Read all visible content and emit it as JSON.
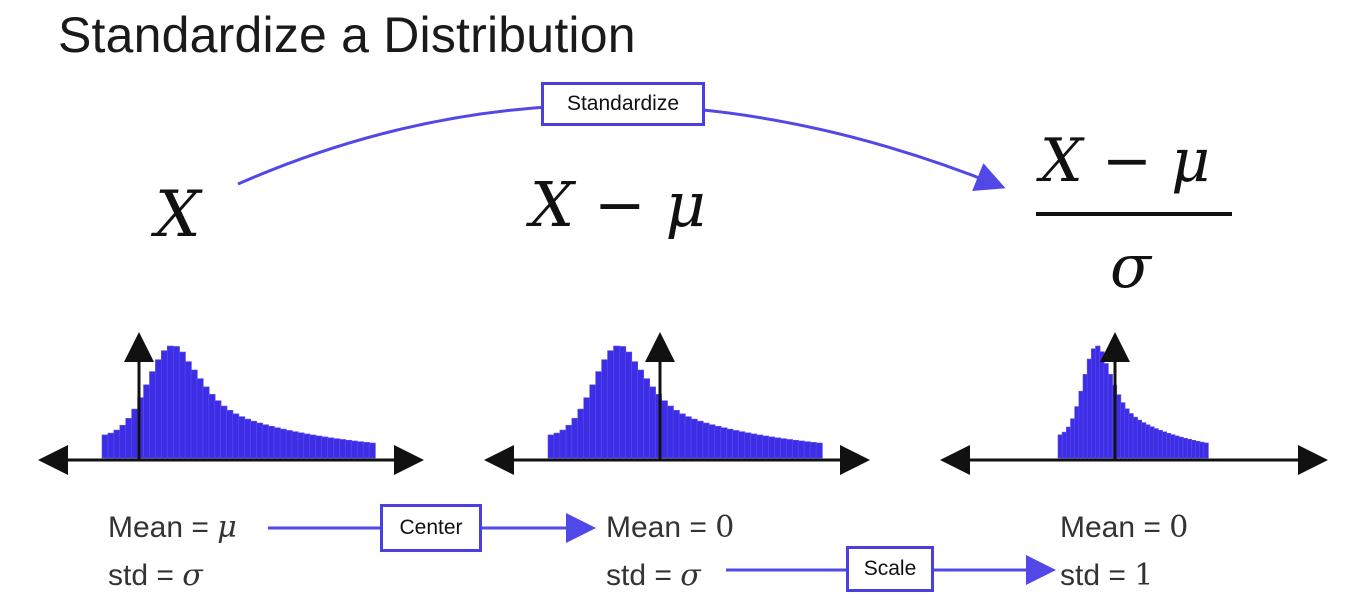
{
  "title": "Standardize a Distribution",
  "formulas": {
    "original": "X",
    "centered": "X − μ",
    "standardized_numerator": "X − μ",
    "standardized_denominator": "σ"
  },
  "transform_labels": {
    "standardize": "Standardize",
    "center": "Center",
    "scale": "Scale"
  },
  "stats": {
    "original": {
      "mean_label": "Mean = ",
      "mean_value": "μ",
      "std_label": "std = ",
      "std_value": "σ"
    },
    "centered": {
      "mean_label": "Mean = ",
      "mean_value": "0",
      "std_label": "std = ",
      "std_value": "σ"
    },
    "standardized": {
      "mean_label": "Mean = ",
      "mean_value": "0",
      "std_label": "std = ",
      "std_value": "1"
    }
  },
  "colors": {
    "histogram": "#3d2ee6",
    "arrow": "#5248e8",
    "axis": "#111111"
  },
  "icons": {
    "arrow": "right-arrow-icon"
  }
}
